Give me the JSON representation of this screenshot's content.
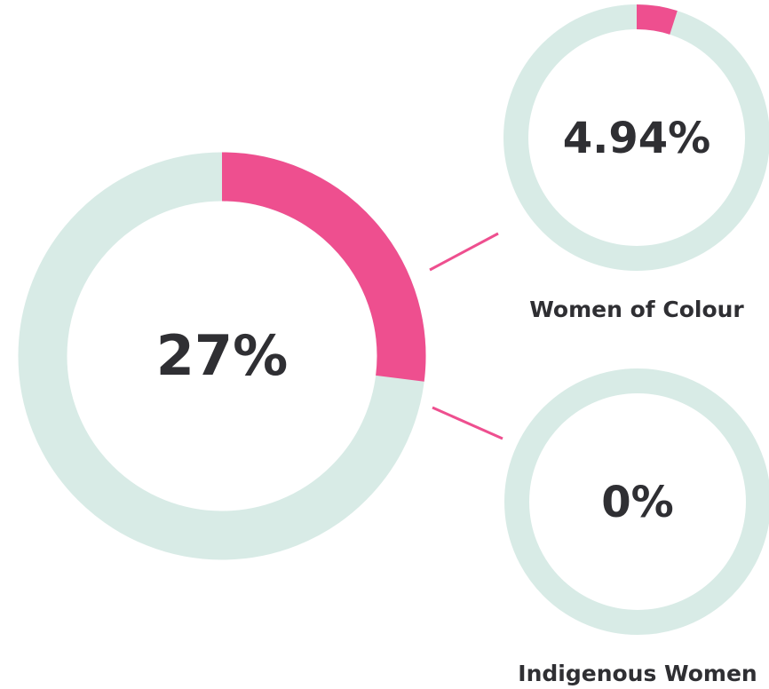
{
  "chart_data": [
    {
      "type": "donut",
      "values": [
        27
      ],
      "value_labels": [
        "27%"
      ],
      "range": [
        0,
        100
      ],
      "color": "#ee4f8f",
      "track_color": "#d8ebe6"
    },
    {
      "type": "donut",
      "title": "Women of Colour",
      "values": [
        4.94
      ],
      "value_labels": [
        "4.94%"
      ],
      "range": [
        0,
        100
      ],
      "color": "#ee4f8f",
      "track_color": "#d8ebe6"
    },
    {
      "type": "donut",
      "title": "Indigenous Women",
      "values": [
        0
      ],
      "value_labels": [
        "0%"
      ],
      "range": [
        0,
        100
      ],
      "color": "#ee4f8f",
      "track_color": "#d8ebe6"
    }
  ]
}
